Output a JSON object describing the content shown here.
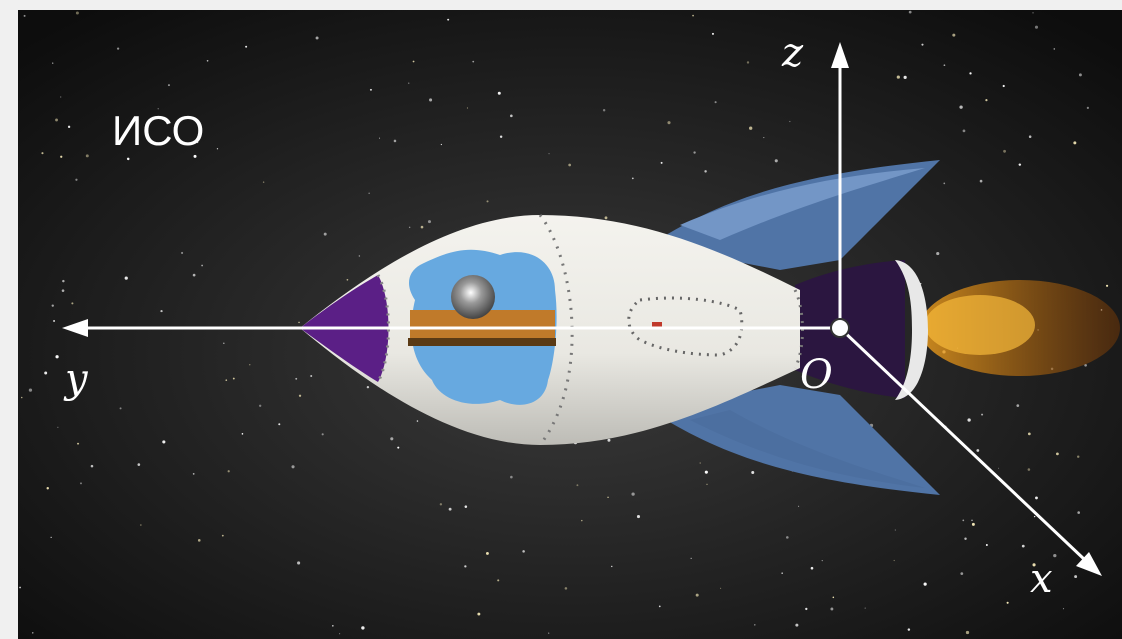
{
  "labels": {
    "frame": "ИСО",
    "z_axis": "z",
    "y_axis": "y",
    "origin": "O",
    "x_axis": "x"
  }
}
